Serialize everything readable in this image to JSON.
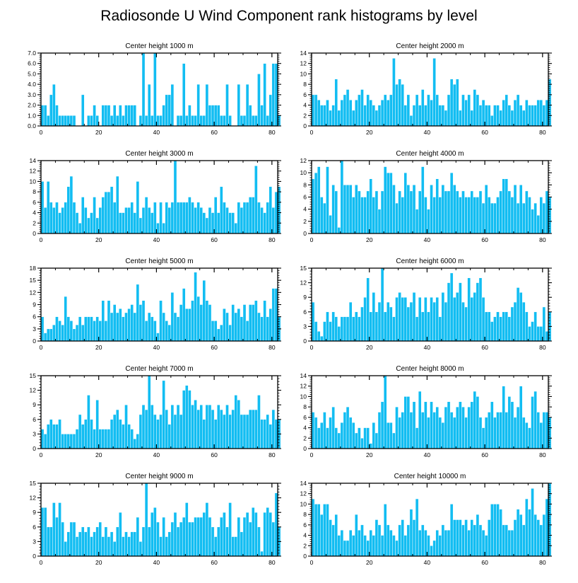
{
  "figure": {
    "title": "Radiosonde U Wind Component rank histograms by level",
    "bar_color": "#12bdf2",
    "bar_edge_color": "#ffffff",
    "axis_color": "#000000"
  },
  "chart_data": [
    {
      "type": "bar",
      "title": "Center height 1000 m",
      "xlim": [
        0,
        82
      ],
      "x_ticks": [
        0,
        20,
        40,
        60,
        80
      ],
      "x_tick_labels": [
        "0",
        "20",
        "40",
        "60",
        "80"
      ],
      "ylim": [
        0,
        7
      ],
      "y_ticks": [
        0,
        1,
        2,
        3,
        4,
        5,
        6,
        7
      ],
      "y_tick_labels": [
        "0.0",
        "1.0",
        "2.0",
        "3.0",
        "4.0",
        "5.0",
        "6.0",
        "7.0"
      ],
      "values": [
        2,
        2,
        1,
        3,
        4,
        2,
        1,
        1,
        1,
        1,
        1,
        1,
        0,
        0,
        3,
        0,
        1,
        1,
        2,
        1,
        0,
        2,
        2,
        2,
        1,
        2,
        1,
        2,
        1,
        2,
        2,
        2,
        2,
        0,
        1,
        7,
        1,
        4,
        1,
        7,
        1,
        1,
        2,
        3,
        3,
        4,
        0,
        1,
        1,
        6,
        1,
        2,
        1,
        1,
        4,
        1,
        1,
        4,
        2,
        2,
        2,
        2,
        1,
        1,
        4,
        1,
        0,
        0,
        4,
        1,
        1,
        4,
        2,
        1,
        1,
        5,
        2,
        6,
        1,
        3,
        6,
        6,
        1
      ]
    },
    {
      "type": "bar",
      "title": "Center height 2000 m",
      "xlim": [
        0,
        82
      ],
      "x_ticks": [
        0,
        20,
        40,
        60,
        80
      ],
      "x_tick_labels": [
        "0",
        "20",
        "40",
        "60",
        "80"
      ],
      "ylim": [
        0,
        14
      ],
      "y_ticks": [
        0,
        2,
        4,
        6,
        8,
        10,
        12,
        14
      ],
      "y_tick_labels": [
        "0",
        "2",
        "4",
        "6",
        "8",
        "10",
        "12",
        "14"
      ],
      "values": [
        6,
        6,
        5,
        4,
        4,
        5,
        3,
        4,
        9,
        3,
        5,
        6,
        7,
        5,
        3,
        5,
        6,
        7,
        4,
        6,
        5,
        4,
        3,
        4,
        5,
        6,
        5,
        6,
        13,
        8,
        9,
        8,
        4,
        6,
        2,
        4,
        6,
        4,
        7,
        4,
        6,
        5,
        13,
        6,
        4,
        4,
        3,
        6,
        9,
        8,
        9,
        3,
        6,
        5,
        6,
        3,
        7,
        6,
        4,
        5,
        4,
        4,
        2,
        4,
        4,
        3,
        5,
        6,
        4,
        3,
        5,
        6,
        4,
        3,
        5,
        4,
        4,
        4,
        5,
        5,
        4,
        5,
        9
      ]
    },
    {
      "type": "bar",
      "title": "Center height 3000 m",
      "xlim": [
        0,
        82
      ],
      "x_ticks": [
        0,
        20,
        40,
        60,
        80
      ],
      "x_tick_labels": [
        "0",
        "20",
        "40",
        "60",
        "80"
      ],
      "ylim": [
        0,
        14
      ],
      "y_ticks": [
        0,
        2,
        4,
        6,
        8,
        10,
        12,
        14
      ],
      "y_tick_labels": [
        "0",
        "2",
        "4",
        "6",
        "8",
        "10",
        "12",
        "14"
      ],
      "values": [
        10,
        5,
        10,
        6,
        5,
        6,
        4,
        5,
        6,
        9,
        11,
        6,
        4,
        2,
        7,
        5,
        3,
        4,
        7,
        3,
        5,
        7,
        8,
        8,
        9,
        6,
        11,
        4,
        4,
        5,
        5,
        6,
        4,
        10,
        3,
        5,
        7,
        5,
        4,
        6,
        2,
        6,
        2,
        6,
        5,
        6,
        14,
        6,
        6,
        6,
        6,
        7,
        6,
        5,
        6,
        5,
        4,
        3,
        5,
        4,
        7,
        4,
        9,
        6,
        5,
        4,
        4,
        2,
        6,
        5,
        6,
        6,
        7,
        7,
        13,
        6,
        5,
        4,
        6,
        9,
        5,
        8,
        9
      ]
    },
    {
      "type": "bar",
      "title": "Center height 4000 m",
      "xlim": [
        0,
        82
      ],
      "x_ticks": [
        0,
        20,
        40,
        60,
        80
      ],
      "x_tick_labels": [
        "0",
        "20",
        "40",
        "60",
        "80"
      ],
      "ylim": [
        0,
        12
      ],
      "y_ticks": [
        0,
        2,
        4,
        6,
        8,
        10,
        12
      ],
      "y_tick_labels": [
        "0",
        "2",
        "4",
        "6",
        "8",
        "10",
        "12"
      ],
      "values": [
        9,
        10,
        11,
        6,
        5,
        11,
        3,
        8,
        7,
        1,
        12,
        8,
        8,
        8,
        6,
        8,
        7,
        6,
        6,
        7,
        9,
        6,
        7,
        4,
        7,
        11,
        10,
        10,
        8,
        5,
        7,
        6,
        10,
        8,
        7,
        8,
        4,
        7,
        11,
        6,
        4,
        8,
        6,
        9,
        6,
        8,
        7,
        7,
        10,
        8,
        7,
        6,
        7,
        6,
        6,
        7,
        6,
        6,
        7,
        5,
        8,
        6,
        5,
        5,
        6,
        7,
        9,
        9,
        7,
        6,
        8,
        5,
        8,
        5,
        7,
        6,
        4,
        5,
        3,
        6,
        5,
        7,
        6
      ]
    },
    {
      "type": "bar",
      "title": "Center height 5000 m",
      "xlim": [
        0,
        82
      ],
      "x_ticks": [
        0,
        20,
        40,
        60,
        80
      ],
      "x_tick_labels": [
        "0",
        "20",
        "40",
        "60",
        "80"
      ],
      "ylim": [
        0,
        18
      ],
      "y_ticks": [
        0,
        3,
        6,
        9,
        12,
        15,
        18
      ],
      "y_tick_labels": [
        "0",
        "3",
        "6",
        "9",
        "12",
        "15",
        "18"
      ],
      "values": [
        6,
        2,
        3,
        3,
        4,
        6,
        5,
        4,
        11,
        6,
        5,
        3,
        4,
        6,
        4,
        6,
        6,
        6,
        5,
        6,
        5,
        10,
        5,
        10,
        7,
        9,
        7,
        8,
        6,
        7,
        8,
        9,
        7,
        14,
        9,
        10,
        5,
        7,
        6,
        5,
        2,
        10,
        7,
        5,
        4,
        12,
        7,
        6,
        9,
        13,
        8,
        8,
        10,
        17,
        11,
        9,
        15,
        10,
        9,
        5,
        5,
        3,
        4,
        8,
        7,
        4,
        9,
        7,
        8,
        6,
        9,
        5,
        9,
        9,
        10,
        7,
        6,
        10,
        6,
        8,
        13,
        13,
        6
      ]
    },
    {
      "type": "bar",
      "title": "Center height 6000 m",
      "xlim": [
        0,
        82
      ],
      "x_ticks": [
        0,
        20,
        40,
        60,
        80
      ],
      "x_tick_labels": [
        "0",
        "20",
        "40",
        "60",
        "80"
      ],
      "ylim": [
        0,
        15
      ],
      "y_ticks": [
        0,
        3,
        6,
        9,
        12,
        15
      ],
      "y_tick_labels": [
        "0",
        "3",
        "6",
        "9",
        "12",
        "15"
      ],
      "values": [
        8,
        4,
        2,
        1,
        4,
        6,
        4,
        6,
        5,
        3,
        5,
        5,
        5,
        8,
        5,
        6,
        5,
        7,
        9,
        13,
        6,
        10,
        6,
        8,
        15,
        6,
        8,
        7,
        5,
        9,
        10,
        9,
        9,
        7,
        8,
        10,
        5,
        9,
        6,
        9,
        6,
        9,
        8,
        9,
        5,
        10,
        8,
        12,
        14,
        9,
        10,
        12,
        8,
        7,
        13,
        9,
        10,
        12,
        13,
        9,
        6,
        6,
        4,
        5,
        6,
        5,
        6,
        6,
        5,
        7,
        8,
        11,
        10,
        8,
        6,
        3,
        4,
        6,
        3,
        3,
        7,
        2,
        6
      ]
    },
    {
      "type": "bar",
      "title": "Center height 7000 m",
      "xlim": [
        0,
        82
      ],
      "x_ticks": [
        0,
        20,
        40,
        60,
        80
      ],
      "x_tick_labels": [
        "0",
        "20",
        "40",
        "60",
        "80"
      ],
      "ylim": [
        0,
        15
      ],
      "y_ticks": [
        0,
        3,
        6,
        9,
        12,
        15
      ],
      "y_tick_labels": [
        "0",
        "3",
        "6",
        "9",
        "12",
        "15"
      ],
      "values": [
        4,
        3,
        5,
        6,
        5,
        5,
        6,
        3,
        3,
        3,
        3,
        3,
        4,
        7,
        5,
        6,
        11,
        6,
        4,
        10,
        4,
        4,
        4,
        4,
        6,
        7,
        8,
        6,
        5,
        9,
        5,
        4,
        2,
        3,
        7,
        9,
        8,
        15,
        9,
        7,
        6,
        7,
        14,
        8,
        5,
        9,
        7,
        9,
        7,
        12,
        13,
        12,
        9,
        10,
        8,
        9,
        6,
        9,
        9,
        8,
        6,
        9,
        8,
        7,
        9,
        7,
        8,
        11,
        10,
        7,
        7,
        7,
        8,
        8,
        8,
        11,
        6,
        6,
        7,
        5,
        8,
        6,
        6
      ]
    },
    {
      "type": "bar",
      "title": "Center height 8000 m",
      "xlim": [
        0,
        82
      ],
      "x_ticks": [
        0,
        20,
        40,
        60,
        80
      ],
      "x_tick_labels": [
        "0",
        "20",
        "40",
        "60",
        "80"
      ],
      "ylim": [
        0,
        14
      ],
      "y_ticks": [
        0,
        2,
        4,
        6,
        8,
        10,
        12,
        14
      ],
      "y_tick_labels": [
        "0",
        "2",
        "4",
        "6",
        "8",
        "10",
        "12",
        "14"
      ],
      "values": [
        7,
        6,
        4,
        5,
        7,
        4,
        6,
        8,
        4,
        3,
        5,
        7,
        8,
        6,
        5,
        3,
        4,
        2,
        4,
        4,
        1,
        5,
        3,
        7,
        9,
        14,
        5,
        5,
        3,
        8,
        6,
        7,
        10,
        10,
        7,
        9,
        4,
        11,
        7,
        9,
        6,
        9,
        7,
        8,
        6,
        5,
        8,
        9,
        7,
        6,
        8,
        9,
        8,
        6,
        8,
        9,
        11,
        10,
        6,
        4,
        6,
        7,
        9,
        6,
        7,
        7,
        12,
        7,
        10,
        9,
        6,
        8,
        12,
        6,
        5,
        4,
        10,
        11,
        7,
        5,
        7,
        7,
        6
      ]
    },
    {
      "type": "bar",
      "title": "Center height 9000 m",
      "xlim": [
        0,
        82
      ],
      "x_ticks": [
        0,
        20,
        40,
        60,
        80
      ],
      "x_tick_labels": [
        "0",
        "20",
        "40",
        "60",
        "80"
      ],
      "ylim": [
        0,
        15
      ],
      "y_ticks": [
        0,
        3,
        6,
        9,
        12,
        15
      ],
      "y_tick_labels": [
        "0",
        "3",
        "6",
        "9",
        "12",
        "15"
      ],
      "values": [
        10,
        10,
        6,
        6,
        11,
        8,
        11,
        7,
        3,
        5,
        7,
        7,
        4,
        5,
        6,
        5,
        6,
        4,
        5,
        6,
        7,
        4,
        6,
        4,
        5,
        3,
        6,
        9,
        4,
        5,
        4,
        5,
        5,
        8,
        3,
        6,
        15,
        6,
        9,
        10,
        7,
        4,
        8,
        4,
        5,
        7,
        9,
        6,
        7,
        8,
        11,
        7,
        7,
        8,
        8,
        8,
        9,
        11,
        8,
        6,
        4,
        6,
        8,
        9,
        6,
        11,
        4,
        4,
        8,
        5,
        8,
        9,
        7,
        10,
        9,
        6,
        1,
        9,
        10,
        9,
        7,
        13,
        6
      ]
    },
    {
      "type": "bar",
      "title": "Center height 10000 m",
      "xlim": [
        0,
        82
      ],
      "x_ticks": [
        0,
        20,
        40,
        60,
        80
      ],
      "x_tick_labels": [
        "0",
        "20",
        "40",
        "60",
        "80"
      ],
      "ylim": [
        0,
        14
      ],
      "y_ticks": [
        0,
        2,
        4,
        6,
        8,
        10,
        12,
        14
      ],
      "y_tick_labels": [
        "0",
        "2",
        "4",
        "6",
        "8",
        "10",
        "12",
        "14"
      ],
      "values": [
        11,
        10,
        10,
        8,
        10,
        10,
        7,
        6,
        8,
        4,
        5,
        3,
        3,
        5,
        4,
        8,
        5,
        6,
        4,
        3,
        5,
        4,
        7,
        6,
        4,
        10,
        6,
        5,
        4,
        3,
        6,
        7,
        4,
        6,
        9,
        7,
        11,
        5,
        6,
        5,
        4,
        2,
        3,
        5,
        4,
        6,
        5,
        5,
        10,
        7,
        7,
        7,
        6,
        7,
        5,
        7,
        6,
        8,
        6,
        5,
        4,
        7,
        10,
        10,
        10,
        9,
        6,
        6,
        5,
        5,
        7,
        9,
        8,
        6,
        11,
        9,
        13,
        8,
        7,
        6,
        8,
        11,
        14
      ]
    }
  ]
}
